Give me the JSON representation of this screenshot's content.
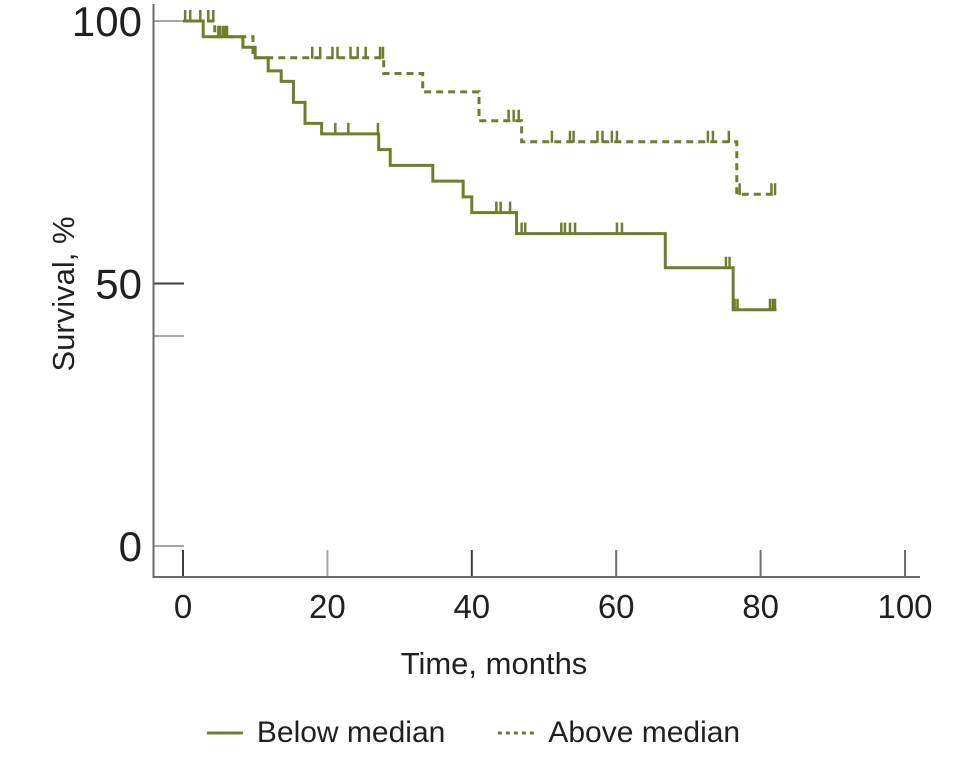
{
  "figure": {
    "colors": {
      "curve": "#6f7f27",
      "axis": "#6a6a6a",
      "tick_dark": "#3d3d3d",
      "tick_medium": "#6e6e6e",
      "tick_light": "#a6a6a6",
      "text": "#231f20",
      "background": "#ffffff"
    },
    "legend": [
      {
        "label": "Below median",
        "style": "solid"
      },
      {
        "label": "Above median",
        "style": "dashed"
      }
    ]
  },
  "chart_data": {
    "type": "line",
    "subtype": "kaplan-meier-step",
    "title": "",
    "xlabel": "Time, months",
    "ylabel": "Survival, %",
    "xlim": [
      0,
      100
    ],
    "ylim": [
      0,
      100
    ],
    "grid": false,
    "legend_position": "bottom-center",
    "x_ticks": [
      {
        "value": 0,
        "label": "0",
        "shade": "dark"
      },
      {
        "value": 20,
        "label": "20",
        "shade": "light"
      },
      {
        "value": 40,
        "label": "40",
        "shade": "dark"
      },
      {
        "value": 60,
        "label": "60",
        "shade": "medium"
      },
      {
        "value": 80,
        "label": "80",
        "shade": "medium"
      },
      {
        "value": 100,
        "label": "100",
        "shade": "medium"
      }
    ],
    "y_ticks": [
      {
        "value": 100,
        "label": "100",
        "shade": "light"
      },
      {
        "value": 50,
        "label": "50",
        "shade": "dark"
      },
      {
        "value": 40,
        "label": "",
        "shade": "light"
      },
      {
        "value": 0,
        "label": "0",
        "shade": "light"
      }
    ],
    "series": [
      {
        "name": "Below median",
        "line": "solid",
        "color": "#6f7f27",
        "steps": [
          [
            0,
            100
          ],
          [
            2.8,
            97
          ],
          [
            8.3,
            95
          ],
          [
            10,
            93
          ],
          [
            11.8,
            90.5
          ],
          [
            13.6,
            88.5
          ],
          [
            15.3,
            84.5
          ],
          [
            16.9,
            80.5
          ],
          [
            19.2,
            78.5
          ],
          [
            27.1,
            75.5
          ],
          [
            28.7,
            72.5
          ],
          [
            34.6,
            69.5
          ],
          [
            38.8,
            66.5
          ],
          [
            40,
            63.5
          ],
          [
            46.2,
            59.5
          ],
          [
            66.8,
            53
          ],
          [
            76.2,
            45
          ]
        ],
        "end_month": 82.2,
        "censors": [
          [
            0.3,
            100
          ],
          [
            1,
            100
          ],
          [
            2.4,
            100
          ],
          [
            4.9,
            97
          ],
          [
            5.5,
            97
          ],
          [
            6.1,
            97
          ],
          [
            21.1,
            78.5
          ],
          [
            22.9,
            78.5
          ],
          [
            27,
            78.5
          ],
          [
            43.4,
            63.5
          ],
          [
            44,
            63.5
          ],
          [
            45.3,
            63.5
          ],
          [
            46.9,
            59.5
          ],
          [
            47.4,
            59.5
          ],
          [
            52.4,
            59.5
          ],
          [
            52.9,
            59.5
          ],
          [
            53.6,
            59.5
          ],
          [
            54.3,
            59.5
          ],
          [
            60.1,
            59.5
          ],
          [
            60.8,
            59.5
          ],
          [
            75.2,
            53
          ],
          [
            75.7,
            53
          ],
          [
            76.4,
            45
          ],
          [
            76.8,
            45
          ],
          [
            81.3,
            45
          ],
          [
            81.7,
            45
          ],
          [
            82,
            45
          ]
        ]
      },
      {
        "name": "Above median",
        "line": "dashed",
        "color": "#6f7f27",
        "steps": [
          [
            0,
            100
          ],
          [
            4.4,
            97
          ],
          [
            9.7,
            93
          ],
          [
            27.8,
            90
          ],
          [
            33.2,
            86.5
          ],
          [
            41,
            81
          ],
          [
            46.9,
            77
          ],
          [
            76.7,
            67
          ]
        ],
        "end_month": 82.3,
        "censors": [
          [
            3.5,
            100
          ],
          [
            4.2,
            100
          ],
          [
            5.1,
            97
          ],
          [
            5.8,
            97
          ],
          [
            17.9,
            93
          ],
          [
            19,
            93
          ],
          [
            20.7,
            93
          ],
          [
            21.4,
            93
          ],
          [
            23.2,
            93
          ],
          [
            24.2,
            93
          ],
          [
            25.3,
            93
          ],
          [
            27.3,
            93
          ],
          [
            27.7,
            93
          ],
          [
            45.1,
            81
          ],
          [
            45.8,
            81
          ],
          [
            46.5,
            81
          ],
          [
            51.1,
            77
          ],
          [
            53.6,
            77
          ],
          [
            54.1,
            77
          ],
          [
            57.4,
            77
          ],
          [
            58.1,
            77
          ],
          [
            59.4,
            77
          ],
          [
            60.1,
            77
          ],
          [
            72.7,
            77
          ],
          [
            73.4,
            77
          ],
          [
            75.6,
            77
          ],
          [
            77.1,
            67
          ],
          [
            81.5,
            67
          ],
          [
            82,
            67
          ]
        ]
      }
    ]
  }
}
